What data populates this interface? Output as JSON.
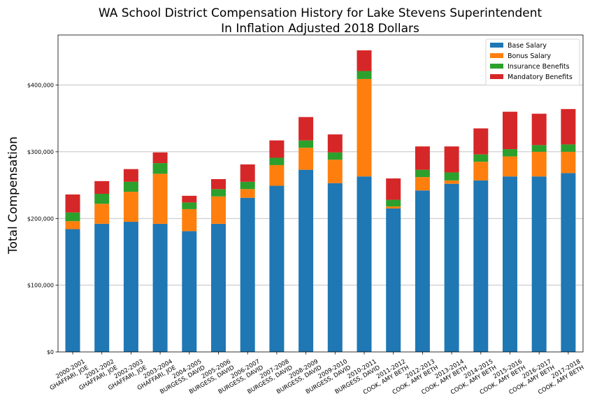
{
  "chart_data": {
    "type": "bar",
    "stacked": true,
    "title": "WA School District Compensation History for Lake Stevens Superintendent",
    "subtitle": "In Inflation Adjusted 2018 Dollars",
    "xlabel": "",
    "ylabel": "Total Compensation",
    "ylim": [
      0,
      475000
    ],
    "yticks": [
      0,
      100000,
      200000,
      300000,
      400000
    ],
    "ytick_labels": [
      "$0",
      "$100,000",
      "$200,000",
      "$300,000",
      "$400,000"
    ],
    "grid": "horizontal",
    "legend_position": "top-right",
    "categories": [
      [
        "2000-2001",
        "GHAFFARI, JOE"
      ],
      [
        "2001-2002",
        "GHAFFARI, JOE"
      ],
      [
        "2002-2003",
        "GHAFFARI, JOE"
      ],
      [
        "2003-2004",
        "GHAFFARI, JOE"
      ],
      [
        "2004-2005",
        "BURGESS, DAVID"
      ],
      [
        "2005-2006",
        "BURGESS, DAVID"
      ],
      [
        "2006-2007",
        "BURGESS, DAVID"
      ],
      [
        "2007-2008",
        "BURGESS, DAVID"
      ],
      [
        "2008-2009",
        "BURGESS, DAVID"
      ],
      [
        "2009-2010",
        "BURGESS, DAVID"
      ],
      [
        "2010-2011",
        "BURGESS, DAVID"
      ],
      [
        "2011-2012",
        "COOK, AMY BETH"
      ],
      [
        "2012-2013",
        "COOK, AMY BETH"
      ],
      [
        "2013-2014",
        "COOK, AMY BETH"
      ],
      [
        "2014-2015",
        "COOK, AMY BETH"
      ],
      [
        "2015-2016",
        "COOK, AMY BETH"
      ],
      [
        "2016-2017",
        "COOK, AMY BETH"
      ],
      [
        "2017-2018",
        "COOK, AMY BETH"
      ]
    ],
    "series": [
      {
        "name": "Base Salary",
        "color": "#1f77b4",
        "values": [
          184000,
          192000,
          195000,
          192000,
          181000,
          192000,
          231000,
          249000,
          273000,
          253000,
          263000,
          215000,
          242000,
          252000,
          257000,
          263000,
          263000,
          268000
        ]
      },
      {
        "name": "Bonus Salary",
        "color": "#ff7f0e",
        "values": [
          12000,
          30000,
          45000,
          75000,
          33000,
          41000,
          13000,
          31000,
          33000,
          35000,
          146000,
          3000,
          20000,
          5000,
          28000,
          30000,
          37000,
          32000
        ]
      },
      {
        "name": "Insurance Benefits",
        "color": "#2ca02c",
        "values": [
          13000,
          15000,
          15000,
          16000,
          10000,
          11000,
          11000,
          11000,
          11000,
          11000,
          12000,
          10000,
          11000,
          12000,
          11000,
          11000,
          10000,
          11000
        ]
      },
      {
        "name": "Mandatory Benefits",
        "color": "#d62728",
        "values": [
          27000,
          19000,
          19000,
          16000,
          10000,
          15000,
          26000,
          26000,
          35000,
          27000,
          31000,
          32000,
          35000,
          39000,
          39000,
          56000,
          47000,
          53000
        ]
      }
    ]
  }
}
